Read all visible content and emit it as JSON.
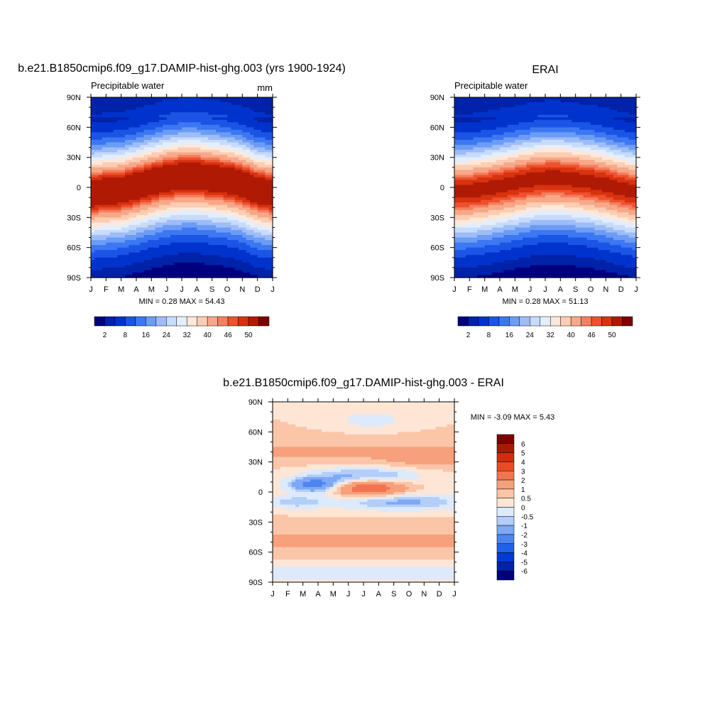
{
  "panels": {
    "model": {
      "title": "b.e21.B1850cmip6.f09_g17.DAMIP-hist-ghg.003 (yrs 1900-1924)",
      "subtitle": "Precipitable water",
      "units": "mm",
      "minmax": "MIN =   0.28 MAX =  54.43"
    },
    "obs": {
      "title": "ERAI",
      "subtitle": "Precipitable water",
      "minmax": "MIN =   0.28 MAX =  51.13"
    },
    "diff": {
      "title": "b.e21.B1850cmip6.f09_g17.DAMIP-hist-ghg.003 - ERAI",
      "minmax": "MIN =  -3.09 MAX =   5.43"
    }
  },
  "chart_data": [
    {
      "type": "heatmap",
      "title": "b.e21.B1850cmip6.f09_g17.DAMIP-hist-ghg.003 (yrs 1900-1924)",
      "subtitle": "Precipitable water",
      "units": "mm",
      "x_ticks": [
        "J",
        "F",
        "M",
        "A",
        "M",
        "J",
        "J",
        "A",
        "S",
        "O",
        "N",
        "D",
        "J"
      ],
      "y_ticks": [
        "90N",
        "60N",
        "30N",
        "0",
        "30S",
        "60S",
        "90S"
      ],
      "y_range": [
        -90,
        90
      ],
      "colorbar_labels": [
        "2",
        "8",
        "16",
        "24",
        "32",
        "40",
        "46",
        "50"
      ],
      "colorbar_levels": [
        2,
        4,
        8,
        12,
        16,
        20,
        24,
        28,
        32,
        36,
        40,
        44,
        46,
        48,
        50
      ],
      "colors": [
        "#00007f",
        "#0022a8",
        "#0033cc",
        "#1a55e6",
        "#3d78f2",
        "#6d9cf5",
        "#9dbdf8",
        "#c7dbfb",
        "#e3eefd",
        "#fde8d9",
        "#fbcdb3",
        "#f8a888",
        "#f3805e",
        "#ee5130",
        "#d8320f",
        "#b01a05",
        "#7f0000"
      ],
      "peak_max_latitude_by_month": [
        -5,
        -3,
        -2,
        2,
        6,
        10,
        12,
        12,
        10,
        8,
        4,
        -2,
        -5
      ],
      "peak_value": 54.43,
      "min": 0.28,
      "max": 54.43
    },
    {
      "type": "heatmap",
      "title": "ERAI",
      "subtitle": "Precipitable water",
      "x_ticks": [
        "J",
        "F",
        "M",
        "A",
        "M",
        "J",
        "J",
        "A",
        "S",
        "O",
        "N",
        "D",
        "J"
      ],
      "y_ticks": [
        "90N",
        "60N",
        "30N",
        "0",
        "30S",
        "60S",
        "90S"
      ],
      "y_range": [
        -90,
        90
      ],
      "colorbar_labels": [
        "2",
        "8",
        "16",
        "24",
        "32",
        "40",
        "46",
        "50"
      ],
      "colorbar_levels": [
        2,
        4,
        8,
        12,
        16,
        20,
        24,
        28,
        32,
        36,
        40,
        44,
        46,
        48,
        50
      ],
      "peak_max_latitude_by_month": [
        -4,
        -3,
        -1,
        2,
        5,
        8,
        10,
        10,
        8,
        6,
        3,
        -1,
        -4
      ],
      "peak_value": 51.13,
      "min": 0.28,
      "max": 51.13
    },
    {
      "type": "heatmap",
      "title": "b.e21.B1850cmip6.f09_g17.DAMIP-hist-ghg.003 - ERAI",
      "x_ticks": [
        "J",
        "F",
        "M",
        "A",
        "M",
        "J",
        "J",
        "A",
        "S",
        "O",
        "N",
        "D",
        "J"
      ],
      "y_ticks": [
        "90N",
        "60N",
        "30N",
        "0",
        "30S",
        "60S",
        "90S"
      ],
      "y_range": [
        -90,
        90
      ],
      "colorbar_labels": [
        "6",
        "5",
        "4",
        "3",
        "2",
        "1",
        "0.5",
        "0",
        "-0.5",
        "-1",
        "-2",
        "-3",
        "-4",
        "-5",
        "-6"
      ],
      "colorbar_levels": [
        -6,
        -5,
        -4,
        -3,
        -2,
        -1,
        -0.5,
        0,
        0.5,
        1,
        2,
        3,
        4,
        5,
        6
      ],
      "diff_colors": [
        "#00007f",
        "#0022a8",
        "#0039d4",
        "#2060ea",
        "#4d85f0",
        "#7fa8f5",
        "#b3cef9",
        "#dceafc",
        "#fde6d6",
        "#fbc6a8",
        "#f7a07c",
        "#f27451",
        "#ea4a25",
        "#d02d0c",
        "#a81a04",
        "#7f0000"
      ],
      "min": -3.09,
      "max": 5.43
    }
  ]
}
